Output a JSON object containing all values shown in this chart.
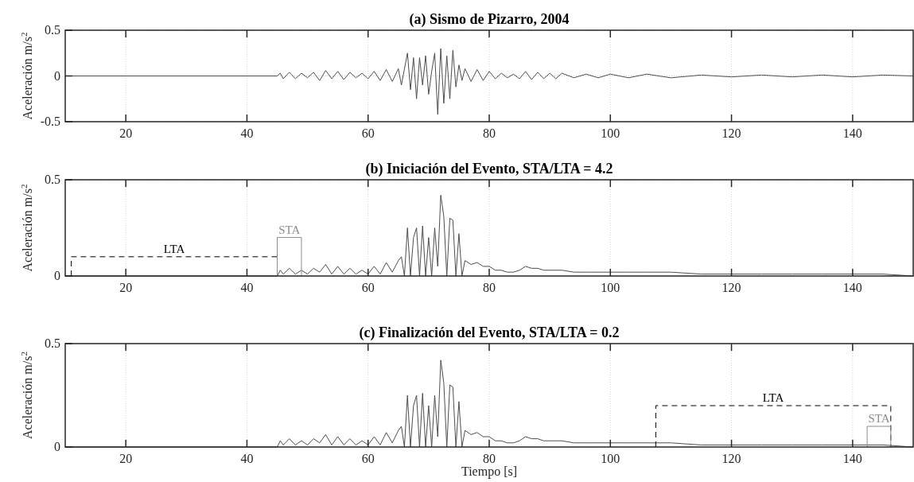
{
  "chart_data": [
    {
      "type": "line",
      "title": "(a) Sismo de Pizarro, 2004",
      "ylabel": "Aceleración m/s$^{2}$",
      "xlim": [
        10,
        150
      ],
      "xticks": [
        20,
        40,
        60,
        80,
        100,
        120,
        140
      ],
      "ylim": [
        -0.5,
        0.5
      ],
      "yticks": [
        -0.5,
        0,
        0.5
      ],
      "grid": true,
      "series": [
        {
          "color": "#4d4d4d",
          "line_style": "solid",
          "x": [
            10,
            45,
            45.5,
            46,
            47,
            48,
            49,
            50,
            51,
            52,
            53,
            54,
            55,
            56,
            57,
            58,
            59,
            60,
            61,
            62,
            63,
            64,
            65,
            65.5,
            66.5,
            67,
            67.5,
            68,
            68.5,
            69,
            69.5,
            70,
            70.5,
            71,
            71.5,
            72,
            72.5,
            73,
            73.5,
            74,
            74.5,
            75,
            75.5,
            76,
            77,
            78,
            79,
            80,
            81,
            82,
            83,
            84,
            85,
            86,
            87,
            88,
            89,
            90,
            91,
            92,
            94,
            96,
            98,
            100,
            103,
            106,
            110,
            115,
            120,
            125,
            130,
            135,
            140,
            145,
            150
          ],
          "values": [
            0,
            0,
            0.03,
            -0.03,
            0.04,
            -0.03,
            0.03,
            -0.02,
            0.04,
            -0.05,
            0.06,
            -0.03,
            0.05,
            -0.04,
            0.04,
            -0.02,
            0.03,
            -0.03,
            0.05,
            -0.05,
            0.07,
            -0.06,
            0.08,
            -0.1,
            0.25,
            -0.15,
            0.2,
            -0.25,
            0.2,
            -0.1,
            0.22,
            -0.2,
            0.05,
            0.25,
            -0.42,
            0.3,
            -0.3,
            0.22,
            -0.25,
            0.28,
            -0.12,
            0.12,
            -0.05,
            0.08,
            -0.06,
            0.07,
            -0.05,
            0.05,
            -0.03,
            0.03,
            -0.02,
            0.02,
            -0.03,
            0.05,
            -0.04,
            0.04,
            -0.03,
            0.03,
            -0.03,
            0.03,
            -0.02,
            0.02,
            -0.02,
            0.02,
            -0.02,
            0.02,
            -0.02,
            0.01,
            -0.01,
            0.01,
            -0.01,
            0.01,
            -0.01,
            0.01,
            0
          ]
        }
      ]
    },
    {
      "type": "line",
      "title": "(b) Iniciación del Evento, STA/LTA = 4.2",
      "ylabel": "Aceleración m/s$^{2}$",
      "xlim": [
        10,
        150
      ],
      "xticks": [
        20,
        40,
        60,
        80,
        100,
        120,
        140
      ],
      "ylim": [
        0,
        0.5
      ],
      "yticks": [
        0,
        0.5
      ],
      "grid": true,
      "series": [
        {
          "color": "#4d4d4d",
          "line_style": "solid",
          "x": [
            10,
            45,
            45.5,
            46,
            47,
            48,
            49,
            50,
            51,
            52,
            53,
            54,
            55,
            56,
            57,
            58,
            59,
            60,
            61,
            62,
            63,
            64,
            65,
            65.5,
            66,
            66.5,
            67,
            67.5,
            68,
            68.5,
            69,
            69.5,
            70,
            70.5,
            71,
            71.5,
            72,
            72.5,
            73,
            73.5,
            74,
            74.5,
            75,
            75.5,
            76,
            77,
            78,
            79,
            80,
            81,
            82,
            83,
            84,
            85,
            86,
            87,
            88,
            89,
            90,
            91,
            92,
            94,
            96,
            98,
            100,
            103,
            106,
            110,
            115,
            120,
            125,
            130,
            135,
            140,
            145,
            150
          ],
          "values": [
            0,
            0,
            0.03,
            0.01,
            0.04,
            0.01,
            0.03,
            0.01,
            0.04,
            0.02,
            0.06,
            0.01,
            0.05,
            0.01,
            0.04,
            0.01,
            0.03,
            0.01,
            0.05,
            0.01,
            0.07,
            0.02,
            0.08,
            0.1,
            0,
            0.25,
            0,
            0.2,
            0.25,
            0,
            0.26,
            0,
            0.2,
            0,
            0.25,
            0.05,
            0.42,
            0.31,
            0,
            0.3,
            0.29,
            0,
            0.22,
            0,
            0.08,
            0.06,
            0.07,
            0.05,
            0.05,
            0.03,
            0.03,
            0.02,
            0.02,
            0.03,
            0.05,
            0.04,
            0.04,
            0.03,
            0.03,
            0.03,
            0.03,
            0.02,
            0.02,
            0.02,
            0.02,
            0.02,
            0.02,
            0.02,
            0.01,
            0.01,
            0.01,
            0.01,
            0.01,
            0.01,
            0.01,
            0
          ]
        },
        {
          "name": "LTA",
          "color": "#000000",
          "line_style": "dashed",
          "x": [
            11,
            11,
            45,
            45
          ],
          "values": [
            0,
            0.1,
            0.1,
            0
          ]
        },
        {
          "name": "STA",
          "color": "#8c8c8c",
          "line_style": "solid",
          "x": [
            45,
            45,
            49,
            49
          ],
          "values": [
            0,
            0.2,
            0.2,
            0
          ]
        }
      ]
    },
    {
      "type": "line",
      "title": "(c) Finalización del Evento, STA/LTA = 0.2",
      "xlabel": "Tiempo [s]",
      "ylabel": "Aceleración m/s$^{2}$",
      "xlim": [
        10,
        150
      ],
      "xticks": [
        20,
        40,
        60,
        80,
        100,
        120,
        140
      ],
      "ylim": [
        0,
        0.5
      ],
      "yticks": [
        0,
        0.5
      ],
      "grid": true,
      "series": [
        {
          "color": "#4d4d4d",
          "line_style": "solid",
          "x": [
            10,
            45,
            45.5,
            46,
            47,
            48,
            49,
            50,
            51,
            52,
            53,
            54,
            55,
            56,
            57,
            58,
            59,
            60,
            61,
            62,
            63,
            64,
            65,
            65.5,
            66,
            66.5,
            67,
            67.5,
            68,
            68.5,
            69,
            69.5,
            70,
            70.5,
            71,
            71.5,
            72,
            72.5,
            73,
            73.5,
            74,
            74.5,
            75,
            75.5,
            76,
            77,
            78,
            79,
            80,
            81,
            82,
            83,
            84,
            85,
            86,
            87,
            88,
            89,
            90,
            91,
            92,
            94,
            96,
            98,
            100,
            103,
            106,
            110,
            115,
            120,
            125,
            130,
            135,
            140,
            145,
            150
          ],
          "values": [
            0,
            0,
            0.03,
            0.01,
            0.04,
            0.01,
            0.03,
            0.01,
            0.04,
            0.02,
            0.06,
            0.01,
            0.05,
            0.01,
            0.04,
            0.01,
            0.03,
            0.01,
            0.05,
            0.01,
            0.07,
            0.02,
            0.08,
            0.1,
            0,
            0.25,
            0,
            0.2,
            0.25,
            0,
            0.26,
            0,
            0.2,
            0,
            0.25,
            0.05,
            0.42,
            0.31,
            0,
            0.3,
            0.29,
            0,
            0.22,
            0,
            0.08,
            0.06,
            0.07,
            0.05,
            0.05,
            0.03,
            0.03,
            0.02,
            0.02,
            0.03,
            0.05,
            0.04,
            0.04,
            0.03,
            0.03,
            0.03,
            0.03,
            0.02,
            0.02,
            0.02,
            0.02,
            0.02,
            0.02,
            0.02,
            0.01,
            0.01,
            0.01,
            0.01,
            0.01,
            0.01,
            0.01,
            0
          ]
        },
        {
          "name": "LTA",
          "color": "#000000",
          "line_style": "dashed",
          "x": [
            107.5,
            107.5,
            146.3,
            146.3
          ],
          "values": [
            0,
            0.2,
            0.2,
            0
          ]
        },
        {
          "name": "STA",
          "color": "#8c8c8c",
          "line_style": "solid",
          "x": [
            142.4,
            142.4,
            146.3,
            146.3
          ],
          "values": [
            0,
            0.1,
            0.1,
            0
          ]
        }
      ]
    }
  ]
}
